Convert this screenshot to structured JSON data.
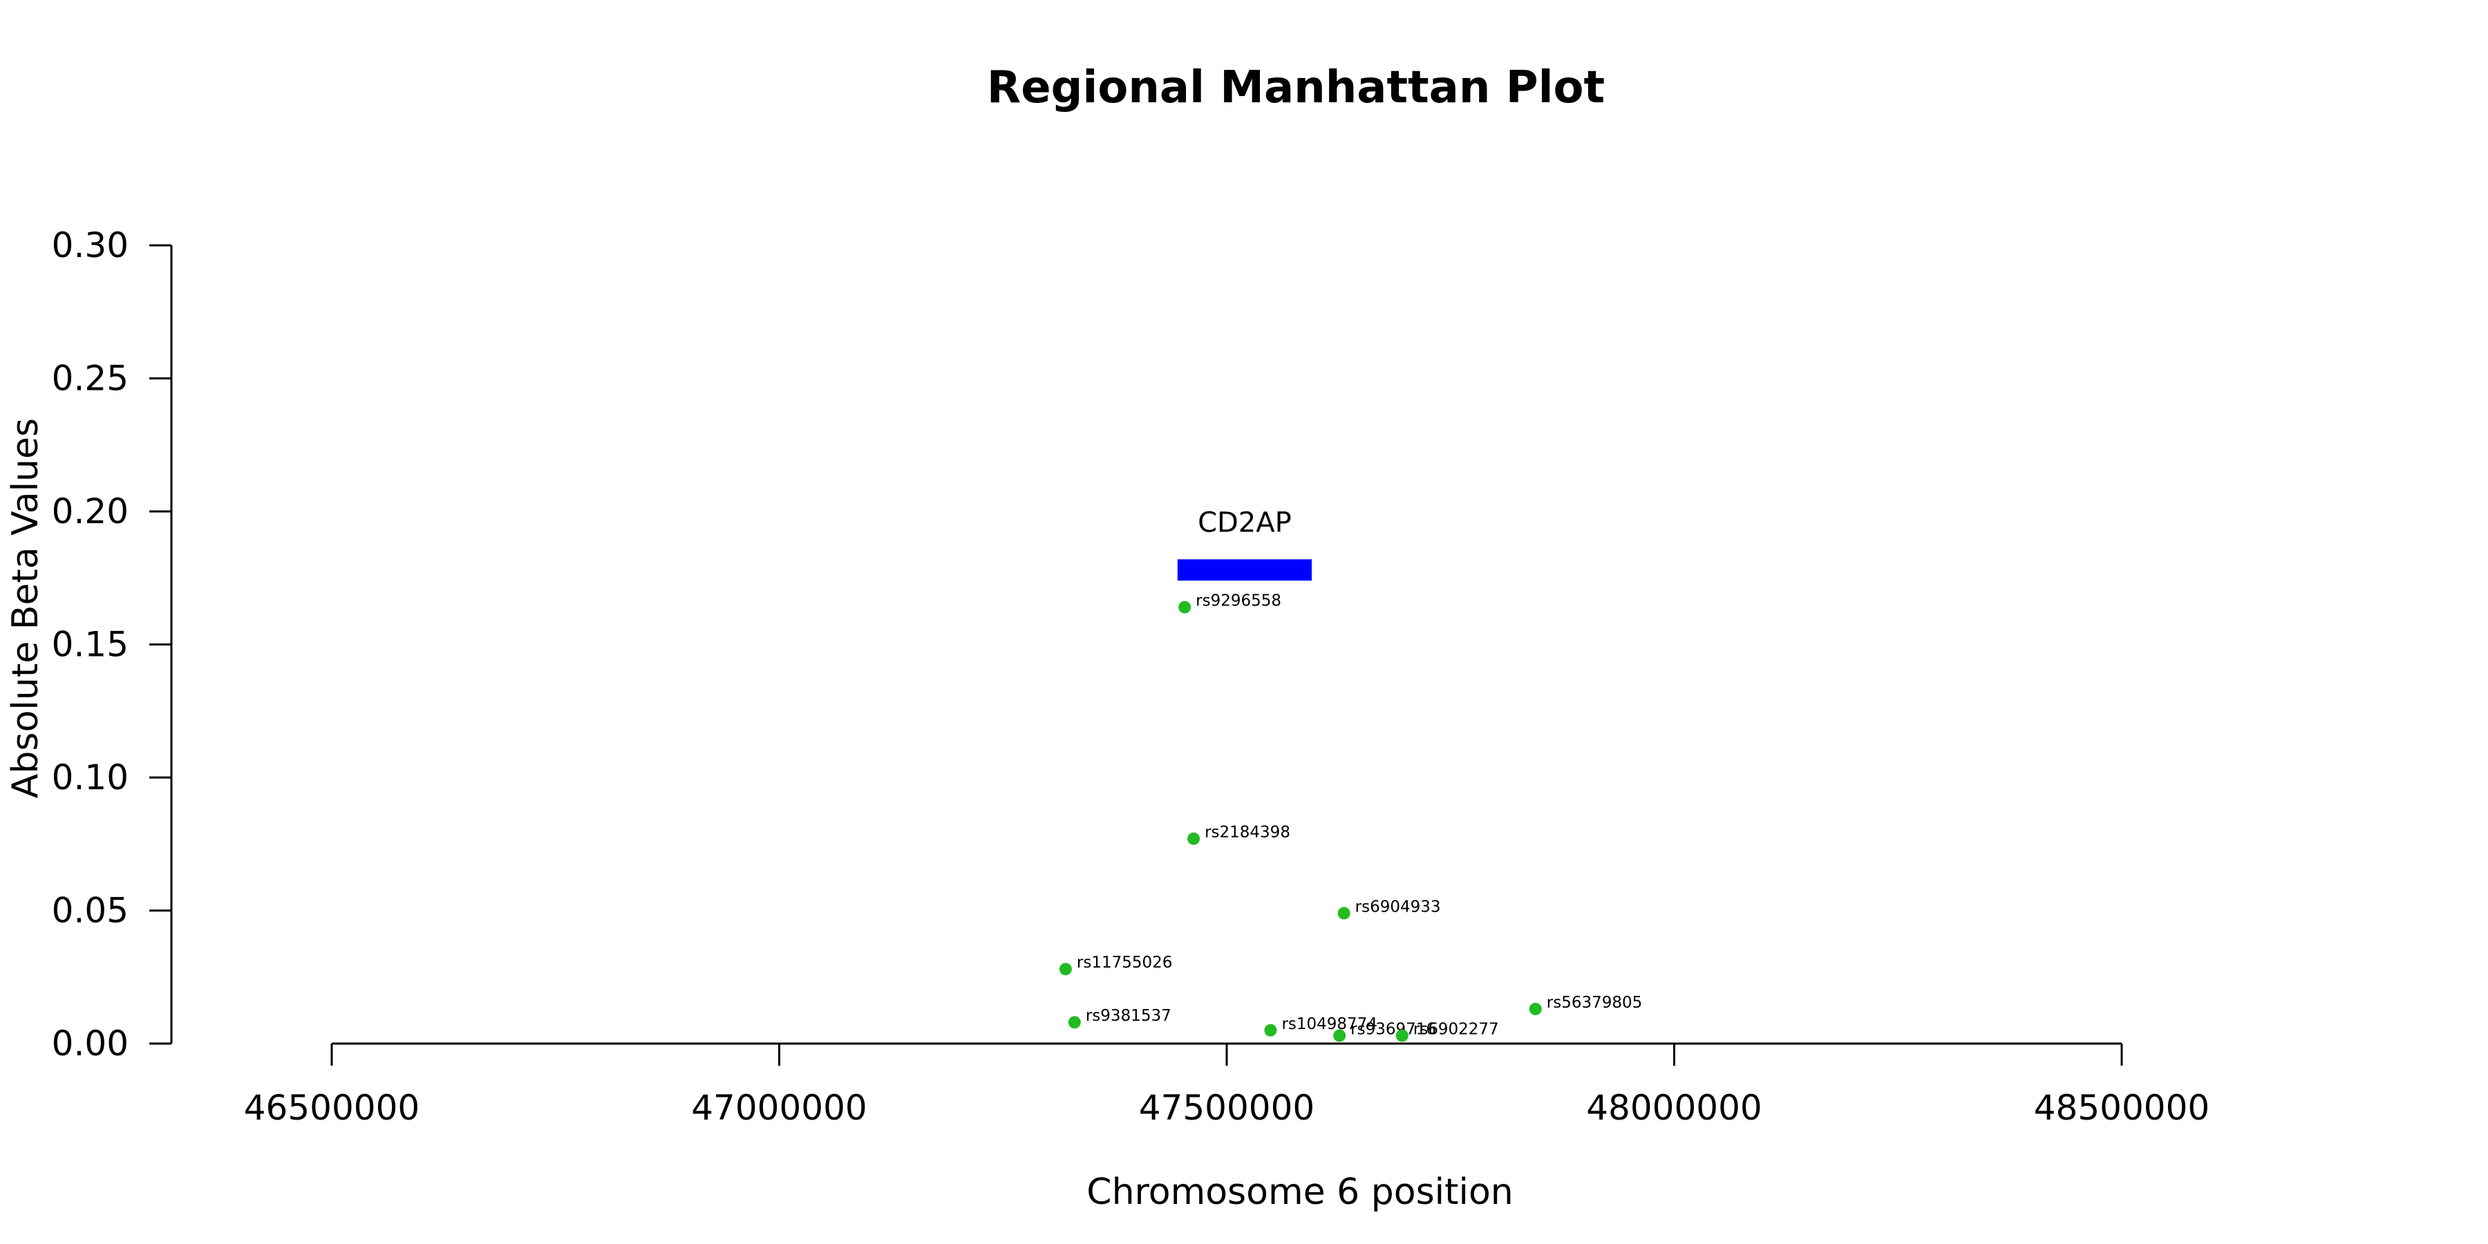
{
  "chart_data": {
    "type": "scatter",
    "title": "Regional Manhattan Plot",
    "xlabel": "Chromosome 6 position",
    "ylabel": "Absolute Beta Values",
    "xlim": [
      46500000,
      48500000
    ],
    "ylim": [
      0,
      0.3
    ],
    "xticks": [
      46500000,
      47000000,
      47500000,
      48000000,
      48500000
    ],
    "xtick_labels": [
      "46500000",
      "47000000",
      "47500000",
      "48000000",
      "48500000"
    ],
    "yticks": [
      0,
      0.05,
      0.1,
      0.15,
      0.2,
      0.25,
      0.3
    ],
    "ytick_labels": [
      "0.00",
      "0.05",
      "0.10",
      "0.15",
      "0.20",
      "0.25",
      "0.30"
    ],
    "grid": false,
    "point_color": "#22bb22",
    "gene_color": "#0000ff",
    "genes": [
      {
        "name": "CD2AP",
        "start": 47445000,
        "end": 47595000,
        "y_low": 0.174,
        "y_high": 0.182
      }
    ],
    "points": [
      {
        "label": "rs9296558",
        "x": 47453000,
        "y": 0.164
      },
      {
        "label": "rs2184398",
        "x": 47463000,
        "y": 0.077
      },
      {
        "label": "rs6904933",
        "x": 47631000,
        "y": 0.049
      },
      {
        "label": "rs11755026",
        "x": 47320000,
        "y": 0.028
      },
      {
        "label": "rs56379805",
        "x": 47845000,
        "y": 0.013
      },
      {
        "label": "rs9381537",
        "x": 47330000,
        "y": 0.008
      },
      {
        "label": "rs10498774",
        "x": 47549000,
        "y": 0.005
      },
      {
        "label": "rs9369716",
        "x": 47626000,
        "y": 0.003
      },
      {
        "label": "rs6902277",
        "x": 47696000,
        "y": 0.003
      }
    ]
  }
}
